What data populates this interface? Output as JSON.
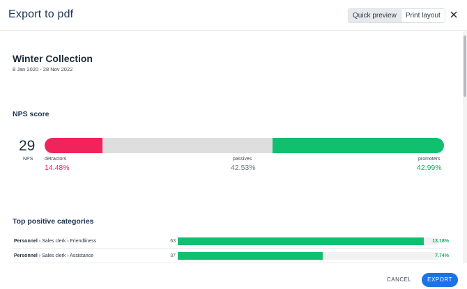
{
  "dialog": {
    "title": "Export to pdf",
    "modes": [
      {
        "label": "Quick preview",
        "active": true
      },
      {
        "label": "Print layout",
        "active": false
      }
    ],
    "close_icon": "close-icon"
  },
  "report": {
    "title": "Winter Collection",
    "date_range": "8 Jan 2020 - 28 Nov 2022"
  },
  "nps": {
    "section_title": "NPS score",
    "score": "29",
    "score_label": "NPS",
    "segments": [
      {
        "name": "detractors",
        "value": "14.48%",
        "fraction": 0.1448,
        "color": "#f0245a"
      },
      {
        "name": "passives",
        "value": "42.53%",
        "fraction": 0.4253,
        "color": "#dedede"
      },
      {
        "name": "promoters",
        "value": "42.99%",
        "fraction": 0.4299,
        "color": "#11c06e"
      }
    ]
  },
  "categories": {
    "section_title": "Top positive categories",
    "items": [
      {
        "group": "Personnel",
        "path": " › Sales clerk › Friendliness",
        "count": "63",
        "fraction": 0.945,
        "pct": "13.18%"
      },
      {
        "group": "Personnel",
        "path": " › Sales clerk › Assistance",
        "count": "37",
        "fraction": 0.555,
        "pct": "7.74%"
      }
    ]
  },
  "footer": {
    "cancel_label": "CANCEL",
    "export_label": "EXPORT"
  },
  "colors": {
    "accent": "#1a73e8",
    "detractors": "#f0245a",
    "passives_text": "#6b7480",
    "promoters": "#11c06e"
  }
}
